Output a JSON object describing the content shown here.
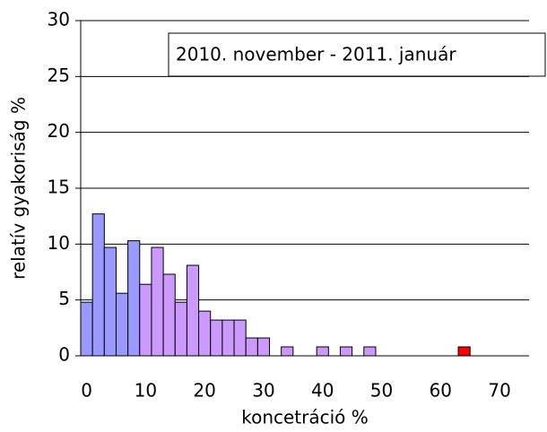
{
  "chart_data": {
    "type": "histogram",
    "xlabel": "koncetráció %",
    "ylabel": "relatív gyakoriság %",
    "annotation": "2010. november - 2011. január",
    "bins": [
      -1,
      1,
      3,
      5,
      7,
      9,
      11,
      13,
      15,
      17,
      19,
      21,
      23,
      25,
      27,
      29,
      31,
      33,
      35,
      37,
      39,
      41,
      43,
      45,
      47,
      49,
      51,
      53,
      55,
      57,
      59,
      61,
      63,
      65
    ],
    "values": [
      4.8,
      12.7,
      9.7,
      5.6,
      10.3,
      6.4,
      9.7,
      7.3,
      4.8,
      8.1,
      4.0,
      3.2,
      3.2,
      3.2,
      1.6,
      1.6,
      0,
      0.8,
      0,
      0,
      0.8,
      0,
      0.8,
      0,
      0.8,
      0,
      0,
      0,
      0,
      0,
      0,
      0,
      0.8
    ],
    "colors": [
      "#9999ff",
      "#9999ff",
      "#9999ff",
      "#9999ff",
      "#9999ff",
      "#cc99ff",
      "#cc99ff",
      "#cc99ff",
      "#cc99ff",
      "#cc99ff",
      "#cc99ff",
      "#cc99ff",
      "#cc99ff",
      "#cc99ff",
      "#cc99ff",
      "#cc99ff",
      "#cc99ff",
      "#cc99ff",
      "#cc99ff",
      "#cc99ff",
      "#cc99ff",
      "#cc99ff",
      "#cc99ff",
      "#cc99ff",
      "#cc99ff",
      "#cc99ff",
      "#cc99ff",
      "#cc99ff",
      "#cc99ff",
      "#cc99ff",
      "#cc99ff",
      "#cc99ff",
      "#ff0000"
    ],
    "xlim": [
      -1,
      75
    ],
    "xticks": [
      0,
      10,
      20,
      30,
      40,
      50,
      60,
      70
    ],
    "ylim": [
      0,
      30
    ],
    "yticks": [
      0,
      5,
      10,
      15,
      20,
      25,
      30
    ],
    "grid": true
  }
}
